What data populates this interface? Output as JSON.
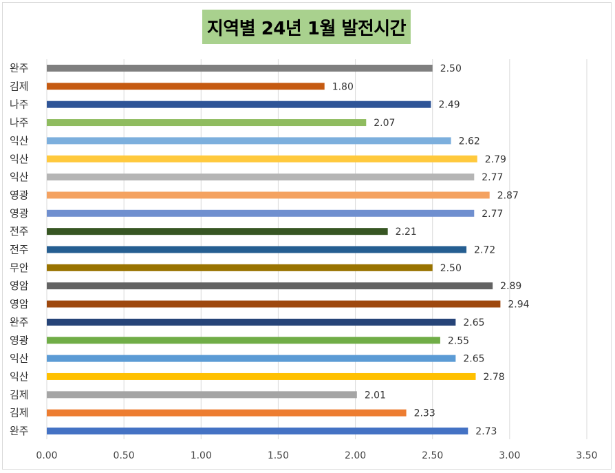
{
  "chart_data": {
    "type": "bar",
    "orientation": "horizontal",
    "title": "지역별 24년 1월 발전시간",
    "xlabel": "",
    "ylabel": "",
    "xlim": [
      0,
      3.5
    ],
    "x_ticks": [
      "0.00",
      "0.50",
      "1.00",
      "1.50",
      "2.00",
      "2.50",
      "3.00",
      "3.50"
    ],
    "grid": "vertical",
    "legend": "none",
    "categories": [
      "완주",
      "김제",
      "나주",
      "나주",
      "익산",
      "익산",
      "익산",
      "영광",
      "영광",
      "전주",
      "전주",
      "무안",
      "영암",
      "영암",
      "완주",
      "영광",
      "익산",
      "익산",
      "김제",
      "김제",
      "완주"
    ],
    "values": [
      2.5,
      1.8,
      2.49,
      2.07,
      2.62,
      2.79,
      2.77,
      2.87,
      2.77,
      2.21,
      2.72,
      2.5,
      2.89,
      2.94,
      2.65,
      2.55,
      2.65,
      2.78,
      2.01,
      2.33,
      2.73
    ],
    "value_labels": [
      "2.50",
      "1.80",
      "2.49",
      "2.07",
      "2.62",
      "2.79",
      "2.77",
      "2.87",
      "2.77",
      "2.21",
      "2.72",
      "2.50",
      "2.89",
      "2.94",
      "2.65",
      "2.55",
      "2.65",
      "2.78",
      "2.01",
      "2.33",
      "2.73"
    ],
    "colors": [
      "#7f7f7f",
      "#c55a11",
      "#2f5597",
      "#8fbc5f",
      "#7cafdd",
      "#ffc93d",
      "#b5b5b5",
      "#f4a261",
      "#6f8fcf",
      "#375623",
      "#255e91",
      "#997300",
      "#636363",
      "#9e480e",
      "#264478",
      "#70ad47",
      "#5b9bd5",
      "#ffc000",
      "#a5a5a5",
      "#ed7d31",
      "#4472c4"
    ]
  }
}
